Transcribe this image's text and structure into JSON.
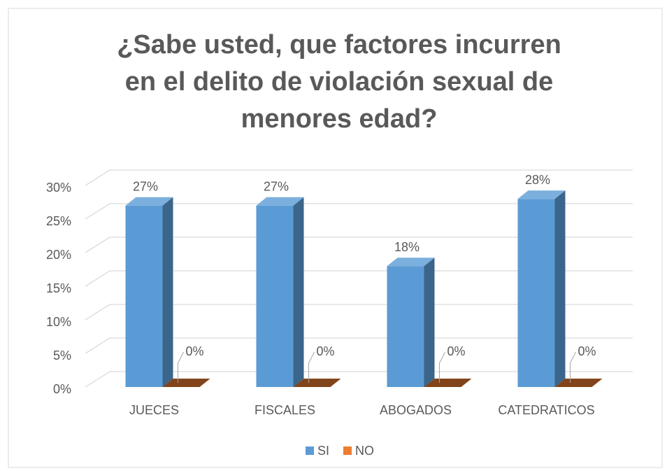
{
  "chart_data": {
    "type": "bar3d",
    "title": "¿Sabe usted, que factores incurren en el delito de violación sexual de menores edad?",
    "categories": [
      "JUECES",
      "FISCALES",
      "ABOGADOS",
      "CATEDRATICOS"
    ],
    "series": [
      {
        "name": "SI",
        "color": "#5b9bd5",
        "values": [
          27,
          27,
          18,
          28
        ],
        "value_labels": [
          "27%",
          "27%",
          "18%",
          "28%"
        ]
      },
      {
        "name": "NO",
        "color": "#ed7d31",
        "values": [
          0,
          0,
          0,
          0
        ],
        "value_labels": [
          "0%",
          "0%",
          "0%",
          "0%"
        ]
      }
    ],
    "ylim": [
      0,
      30
    ],
    "yticks": [
      {
        "value": 0,
        "label": "0%"
      },
      {
        "value": 5,
        "label": "5%"
      },
      {
        "value": 10,
        "label": "10%"
      },
      {
        "value": 15,
        "label": "15%"
      },
      {
        "value": 20,
        "label": "20%"
      },
      {
        "value": 25,
        "label": "25%"
      },
      {
        "value": 30,
        "label": "30%"
      }
    ],
    "grid": true,
    "legend": "bottom"
  }
}
